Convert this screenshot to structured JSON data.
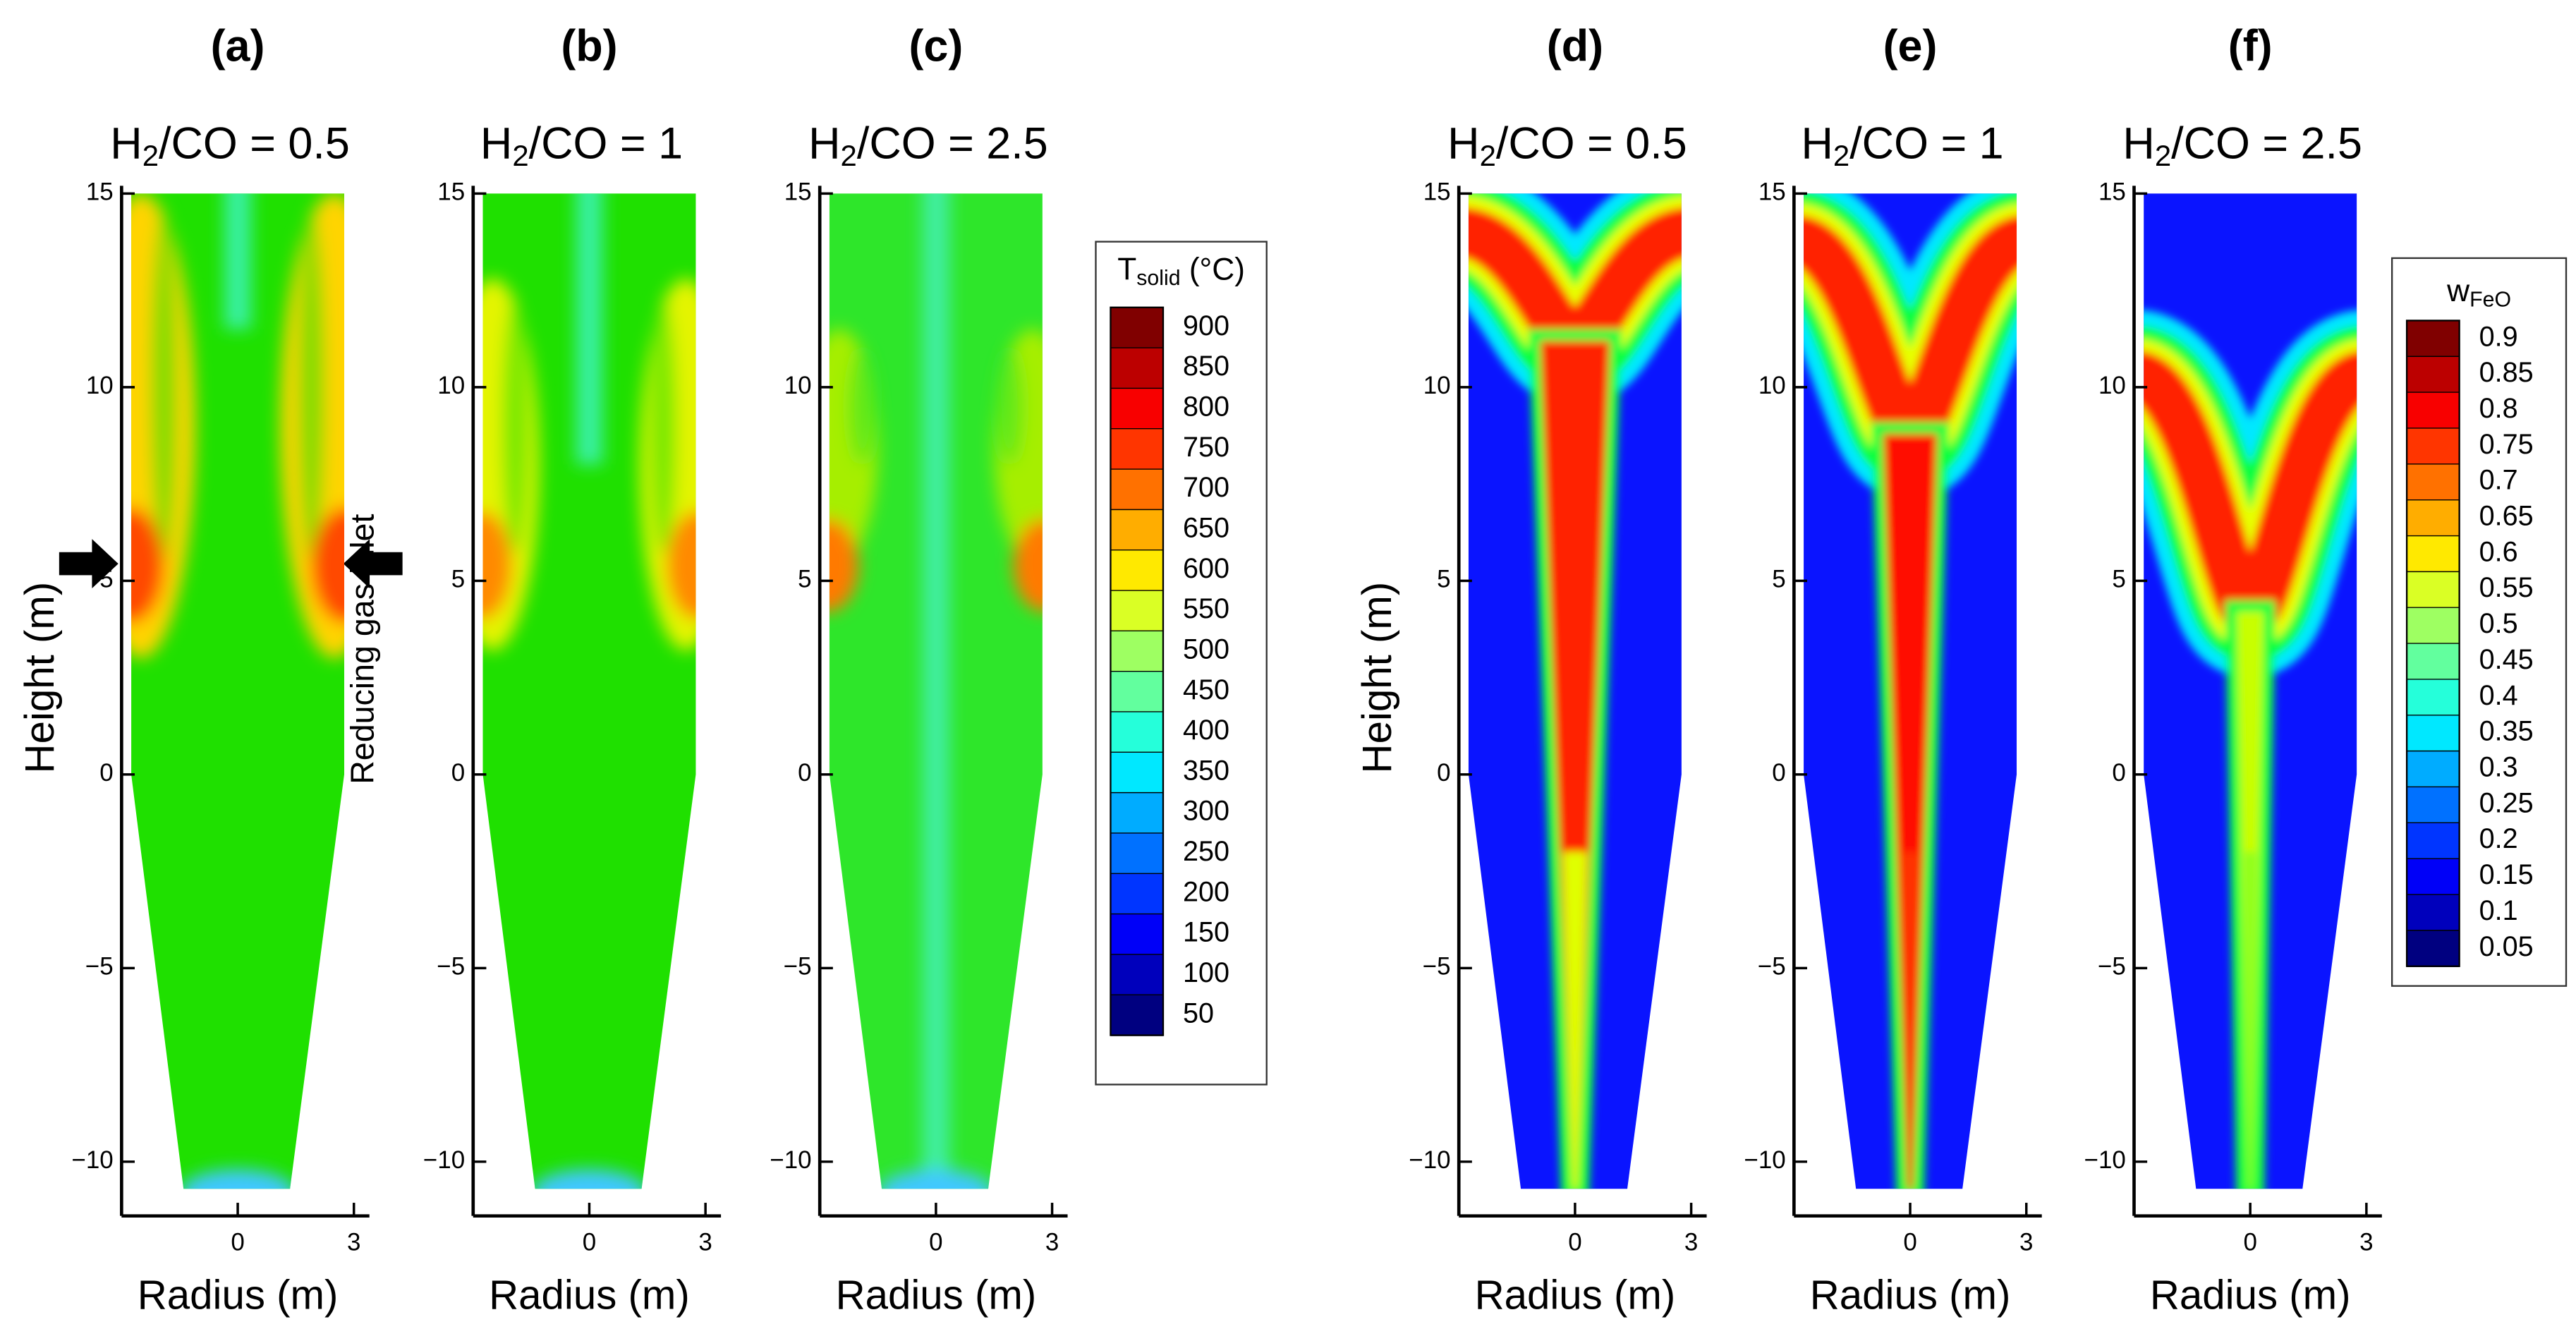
{
  "chart_data": [
    {
      "type": "contour",
      "title": "(a)",
      "subtitle": {
        "pre": "H",
        "sub": "2",
        "post": "/CO = 0.5"
      },
      "x_label": "Radius (m)",
      "y_label": "Height (m)",
      "annotation": "Reducing gas inlet",
      "xlim": [
        -3,
        3.4
      ],
      "ylim": [
        -11.4,
        15.2
      ],
      "xticks": [
        0,
        3
      ],
      "yticks": [
        {
          "value": -10,
          "label": "−10"
        },
        {
          "value": -5,
          "label": "−5"
        },
        0,
        5,
        10,
        15
      ]
    },
    {
      "type": "contour",
      "title": "(b)",
      "subtitle": {
        "pre": "H",
        "sub": "2",
        "post": "/CO = 1"
      },
      "x_label": "Radius (m)",
      "xlim": [
        -3,
        3.4
      ],
      "ylim": [
        -11.4,
        15.2
      ],
      "xticks": [
        0,
        3
      ],
      "yticks": [
        {
          "value": -10,
          "label": "−10"
        },
        {
          "value": -5,
          "label": "−5"
        },
        0,
        5,
        10,
        15
      ]
    },
    {
      "type": "contour",
      "title": "(c)",
      "subtitle": {
        "pre": "H",
        "sub": "2",
        "post": "/CO = 2.5"
      },
      "x_label": "Radius (m)",
      "xlim": [
        -3,
        3.4
      ],
      "ylim": [
        -11.4,
        15.2
      ],
      "xticks": [
        0,
        3
      ],
      "yticks": [
        {
          "value": -10,
          "label": "−10"
        },
        {
          "value": -5,
          "label": "−5"
        },
        0,
        5,
        10,
        15
      ]
    },
    {
      "type": "contour",
      "title": "(d)",
      "subtitle": {
        "pre": "H",
        "sub": "2",
        "post": "/CO = 0.5"
      },
      "x_label": "Radius (m)",
      "y_label": "Height (m)",
      "xlim": [
        -3,
        3.4
      ],
      "ylim": [
        -11.4,
        15.2
      ],
      "xticks": [
        0,
        3
      ],
      "yticks": [
        {
          "value": -10,
          "label": "−10"
        },
        {
          "value": -5,
          "label": "−5"
        },
        0,
        5,
        10,
        15
      ]
    },
    {
      "type": "contour",
      "title": "(e)",
      "subtitle": {
        "pre": "H",
        "sub": "2",
        "post": "/CO = 1"
      },
      "x_label": "Radius (m)",
      "xlim": [
        -3,
        3.4
      ],
      "ylim": [
        -11.4,
        15.2
      ],
      "xticks": [
        0,
        3
      ],
      "yticks": [
        {
          "value": -10,
          "label": "−10"
        },
        {
          "value": -5,
          "label": "−5"
        },
        0,
        5,
        10,
        15
      ]
    },
    {
      "type": "contour",
      "title": "(f)",
      "subtitle": {
        "pre": "H",
        "sub": "2",
        "post": "/CO = 2.5"
      },
      "x_label": "Radius (m)",
      "xlim": [
        -3,
        3.4
      ],
      "ylim": [
        -11.4,
        15.2
      ],
      "xticks": [
        0,
        3
      ],
      "yticks": [
        {
          "value": -10,
          "label": "−10"
        },
        {
          "value": -5,
          "label": "−5"
        },
        0,
        5,
        10,
        15
      ]
    }
  ],
  "colorbars": [
    {
      "title": {
        "main": "T",
        "sub": "solid",
        "post": " (°C)"
      },
      "ticks": [
        900,
        850,
        800,
        750,
        700,
        650,
        600,
        550,
        500,
        450,
        400,
        350,
        300,
        250,
        200,
        150,
        100,
        50
      ]
    },
    {
      "title": {
        "main": "w",
        "sub": "FeO"
      },
      "ticks": [
        0.9,
        0.85,
        0.8,
        0.75,
        0.7,
        0.65,
        0.6,
        0.55,
        0.5,
        0.45,
        0.4,
        0.35,
        0.3,
        0.25,
        0.2,
        0.15,
        0.1,
        0.05
      ]
    }
  ]
}
